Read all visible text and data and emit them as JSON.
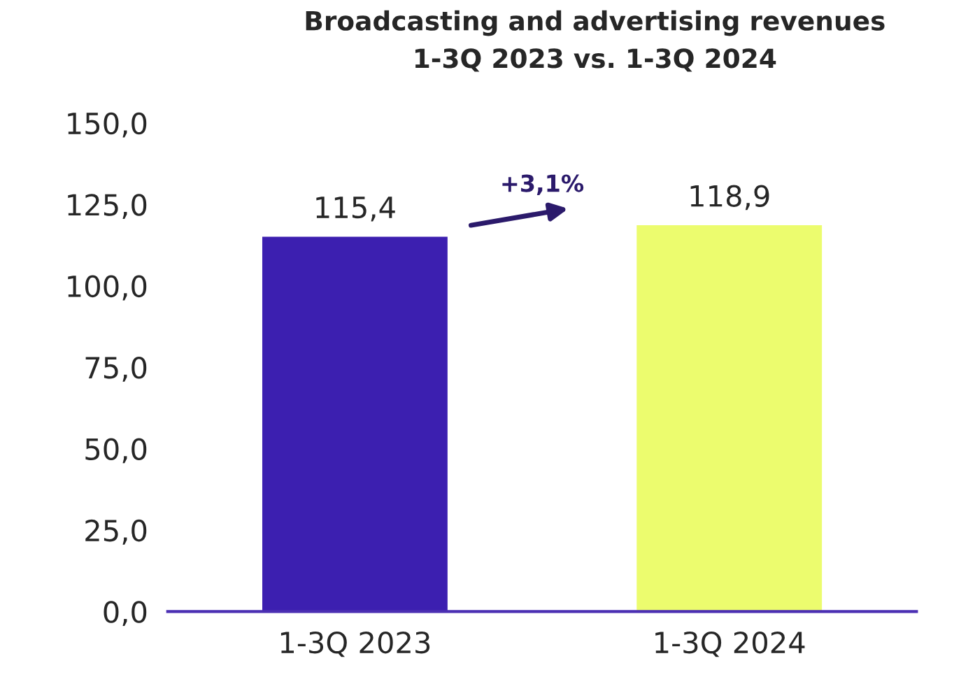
{
  "chart_data": {
    "type": "bar",
    "title": "Broadcasting and advertising revenues\n1-3Q 2023 vs. 1-3Q 2024",
    "categories": [
      "1-3Q 2023",
      "1-3Q 2024"
    ],
    "values": [
      115.4,
      118.9
    ],
    "colors": [
      "#3c1fb0",
      "#ecfc6e"
    ],
    "value_labels": [
      "115,4",
      "118,9"
    ],
    "ylim": [
      0,
      150
    ],
    "yticks": [
      {
        "value": 0,
        "label": "0,0"
      },
      {
        "value": 25,
        "label": "25,0"
      },
      {
        "value": 50,
        "label": "50,0"
      },
      {
        "value": 75,
        "label": "75,0"
      },
      {
        "value": 100,
        "label": "100,0"
      },
      {
        "value": 125,
        "label": "125,0"
      },
      {
        "value": 150,
        "label": "150,0"
      }
    ],
    "annotations": [
      "+3,1%"
    ],
    "grid": false,
    "legend": false
  }
}
